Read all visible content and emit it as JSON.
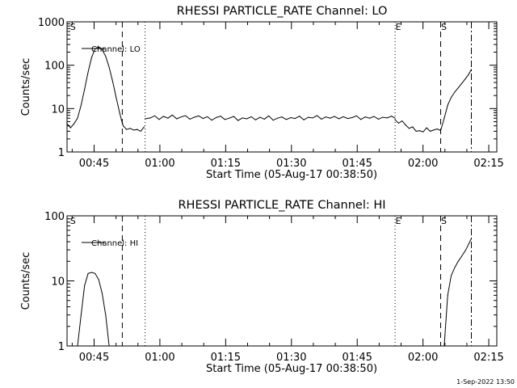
{
  "footer": {
    "timestamp": "1-Sep-2022 13:50"
  },
  "chart_data": [
    {
      "type": "line",
      "title": "RHESSI PARTICLE_RATE Channel: LO",
      "xlabel": "Start Time (05-Aug-17 00:38:50)",
      "ylabel": "Counts/sec",
      "yscale": "log",
      "ylim": [
        1,
        1000
      ],
      "xlim_minutes": [
        0,
        98
      ],
      "x_ticks": [
        {
          "minute": 6.17,
          "label": "00:45"
        },
        {
          "minute": 21.17,
          "label": "01:00"
        },
        {
          "minute": 36.17,
          "label": "01:15"
        },
        {
          "minute": 51.17,
          "label": "01:30"
        },
        {
          "minute": 66.17,
          "label": "01:45"
        },
        {
          "minute": 81.17,
          "label": "02:00"
        },
        {
          "minute": 96.17,
          "label": "02:15"
        }
      ],
      "y_ticks": [
        {
          "value": 1,
          "label": "1"
        },
        {
          "value": 10,
          "label": "10"
        },
        {
          "value": 100,
          "label": "100"
        },
        {
          "value": 1000,
          "label": "1000"
        }
      ],
      "legend": {
        "label": "Channel: LO",
        "position": "top-left"
      },
      "markers": [
        {
          "minute": 0.6,
          "label": "S",
          "style": "none"
        },
        {
          "minute": 12.6,
          "label": "",
          "style": "dashed"
        },
        {
          "minute": 17.8,
          "label": "",
          "style": "dotted"
        },
        {
          "minute": 74.8,
          "label": "E",
          "style": "dotted"
        },
        {
          "minute": 85.2,
          "label": "S",
          "style": "dashed"
        },
        {
          "minute": 92.2,
          "label": "",
          "style": "dashdot"
        }
      ],
      "series": [
        {
          "name": "Channel: LO",
          "segments": [
            {
              "x": [
                0,
                0.8,
                1.6,
                2.4,
                3.2,
                4.0,
                4.8,
                5.6,
                6.4,
                7.2,
                8.0,
                8.8,
                9.6,
                10.4,
                11.2,
                12.0,
                12.4,
                12.8,
                13.6,
                14.4,
                15.2,
                16.0,
                16.8,
                17.6
              ],
              "y": [
                4.5,
                3.6,
                4.5,
                6,
                12,
                28,
                70,
                150,
                240,
                265,
                230,
                160,
                90,
                42,
                18,
                8,
                5.5,
                4,
                3.3,
                3.5,
                3.2,
                3.3,
                3.0,
                3.8
              ]
            },
            {
              "x": [
                17.8,
                19,
                20,
                21,
                22,
                23,
                24,
                25,
                26,
                27,
                28,
                29,
                30,
                31,
                32,
                33,
                34,
                35,
                36,
                37,
                38,
                39,
                40,
                41,
                42,
                43,
                44,
                45,
                46,
                47,
                48,
                49,
                50,
                51,
                52,
                53,
                54,
                55,
                56,
                57,
                58,
                59,
                60,
                61,
                62,
                63,
                64,
                65,
                66,
                67,
                68,
                69,
                70,
                71,
                72,
                73,
                74,
                74.8
              ],
              "y": [
                5.8,
                6.1,
                6.8,
                5.6,
                6.6,
                6.0,
                7.1,
                5.8,
                6.4,
                6.9,
                5.7,
                6.3,
                6.8,
                5.9,
                6.5,
                5.4,
                6.2,
                6.7,
                5.6,
                6.0,
                6.6,
                5.3,
                6.1,
                5.8,
                6.5,
                5.5,
                6.3,
                5.7,
                6.8,
                5.4,
                6.0,
                6.4,
                5.6,
                6.2,
                5.9,
                6.7,
                5.5,
                6.3,
                6.1,
                6.9,
                5.7,
                6.4,
                6.0,
                6.6,
                5.8,
                6.5,
                5.9,
                6.2,
                6.8,
                5.6,
                6.4,
                6.0,
                6.6,
                5.7,
                6.3,
                6.1,
                6.7,
                6.0
              ]
            },
            {
              "x": [
                74.8,
                75.6,
                76.4,
                77.2,
                78.0,
                78.8,
                79.6,
                80.4,
                81.2,
                82.0,
                82.8,
                83.6,
                84.4,
                85.2,
                86.0,
                86.8,
                87.6,
                88.4,
                89.2,
                90.0,
                90.8,
                91.6,
                92.2
              ],
              "y": [
                5.5,
                4.6,
                5.2,
                4.2,
                3.5,
                3.8,
                3.0,
                3.1,
                2.9,
                3.6,
                3.0,
                3.2,
                3.4,
                3.1,
                6,
                12,
                18,
                24,
                30,
                38,
                48,
                62,
                80
              ]
            }
          ]
        }
      ]
    },
    {
      "type": "line",
      "title": "RHESSI PARTICLE_RATE Channel: HI",
      "xlabel": "Start Time (05-Aug-17 00:38:50)",
      "ylabel": "Counts/sec",
      "yscale": "log",
      "ylim": [
        1,
        100
      ],
      "xlim_minutes": [
        0,
        98
      ],
      "x_ticks": [
        {
          "minute": 6.17,
          "label": "00:45"
        },
        {
          "minute": 21.17,
          "label": "01:00"
        },
        {
          "minute": 36.17,
          "label": "01:15"
        },
        {
          "minute": 51.17,
          "label": "01:30"
        },
        {
          "minute": 66.17,
          "label": "01:45"
        },
        {
          "minute": 81.17,
          "label": "02:00"
        },
        {
          "minute": 96.17,
          "label": "02:15"
        }
      ],
      "y_ticks": [
        {
          "value": 1,
          "label": "1"
        },
        {
          "value": 10,
          "label": "10"
        },
        {
          "value": 100,
          "label": "100"
        }
      ],
      "legend": {
        "label": "Channel: HI",
        "position": "top-left"
      },
      "markers": [
        {
          "minute": 0.6,
          "label": "S",
          "style": "none"
        },
        {
          "minute": 12.6,
          "label": "",
          "style": "dashed"
        },
        {
          "minute": 17.8,
          "label": "",
          "style": "dotted"
        },
        {
          "minute": 74.8,
          "label": "E",
          "style": "dotted"
        },
        {
          "minute": 85.2,
          "label": "S",
          "style": "dashed"
        },
        {
          "minute": 92.2,
          "label": "",
          "style": "dashdot"
        }
      ],
      "series": [
        {
          "name": "Channel: HI",
          "segments": [
            {
              "x": [
                2.4,
                3.2,
                4.0,
                4.8,
                5.6,
                6.4,
                7.2,
                8.0,
                8.8,
                9.6
              ],
              "y": [
                1.0,
                3.0,
                8.5,
                13.0,
                13.5,
                13.0,
                10.5,
                6.5,
                3.0,
                1.0
              ]
            },
            {
              "x": [
                86.0,
                86.8,
                87.6,
                88.4,
                89.2,
                90.0,
                90.8,
                91.6,
                92.2
              ],
              "y": [
                1.0,
                6.0,
                12.0,
                16.0,
                20.0,
                24.0,
                29.0,
                37.0,
                45.0
              ]
            }
          ]
        }
      ]
    }
  ]
}
